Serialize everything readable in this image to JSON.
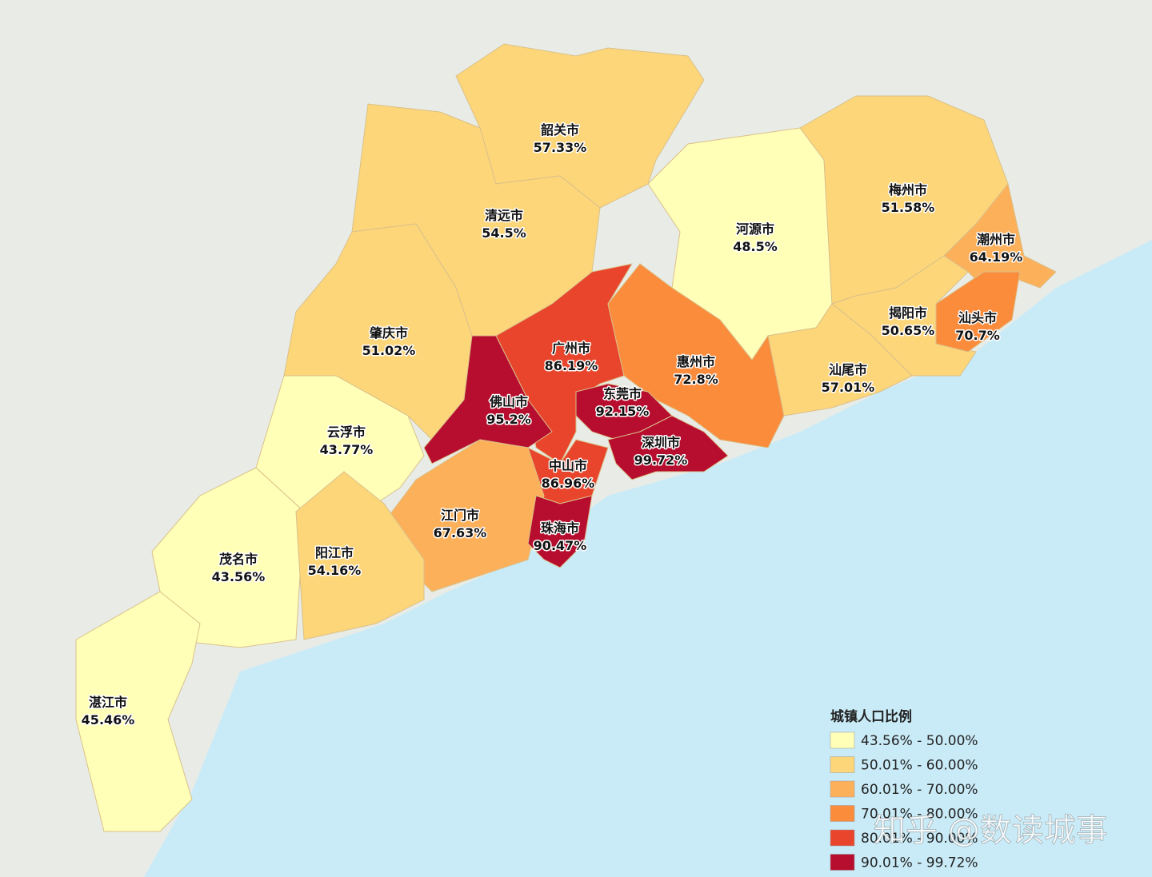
{
  "regions": [
    {
      "name": "韶关市",
      "label": "57.33%",
      "color": "#fdd67a"
    },
    {
      "name": "清远市",
      "label": "54.5%",
      "color": "#fdd67a"
    },
    {
      "name": "河源市",
      "label": "48.5%",
      "color": "#ffffb8"
    },
    {
      "name": "梅州市",
      "label": "51.58%",
      "color": "#fdd67a"
    },
    {
      "name": "潮州市",
      "label": "64.19%",
      "color": "#fdb05a"
    },
    {
      "name": "揭阳市",
      "label": "50.65%",
      "color": "#fdd67a"
    },
    {
      "name": "汕头市",
      "label": "70.7%",
      "color": "#fb8c3c"
    },
    {
      "name": "肇庆市",
      "label": "51.02%",
      "color": "#fdd67a"
    },
    {
      "name": "广州市",
      "label": "86.19%",
      "color": "#e8452c"
    },
    {
      "name": "惠州市",
      "label": "72.8%",
      "color": "#fb8c3c"
    },
    {
      "name": "汕尾市",
      "label": "57.01%",
      "color": "#fdd67a"
    },
    {
      "name": "佛山市",
      "label": "95.2%",
      "color": "#b70d2e"
    },
    {
      "name": "东莞市",
      "label": "92.15%",
      "color": "#b70d2e"
    },
    {
      "name": "云浮市",
      "label": "43.77%",
      "color": "#ffffb8"
    },
    {
      "name": "深圳市",
      "label": "99.72%",
      "color": "#b70d2e"
    },
    {
      "name": "中山市",
      "label": "86.96%",
      "color": "#e8452c"
    },
    {
      "name": "江门市",
      "label": "67.63%",
      "color": "#fdb05a"
    },
    {
      "name": "珠海市",
      "label": "90.47%",
      "color": "#b70d2e"
    },
    {
      "name": "茂名市",
      "label": "43.56%",
      "color": "#ffffb8"
    },
    {
      "name": "阳江市",
      "label": "54.16%",
      "color": "#fdd67a"
    },
    {
      "name": "湛江市",
      "label": "45.46%",
      "color": "#ffffb8"
    }
  ],
  "legend": {
    "title": "城镇人口比例",
    "items": [
      {
        "label": "43.56% - 50.00%",
        "color": "#ffffb8"
      },
      {
        "label": "50.01% - 60.00%",
        "color": "#fdd67a"
      },
      {
        "label": "60.01% - 70.00%",
        "color": "#fdb05a"
      },
      {
        "label": "70.01% - 80.00%",
        "color": "#fb8c3c"
      },
      {
        "label": "80.01% - 90.00%",
        "color": "#e8452c"
      },
      {
        "label": "90.01% - 99.72%",
        "color": "#b70d2e"
      }
    ]
  },
  "watermark": "知乎 @数读城事"
}
